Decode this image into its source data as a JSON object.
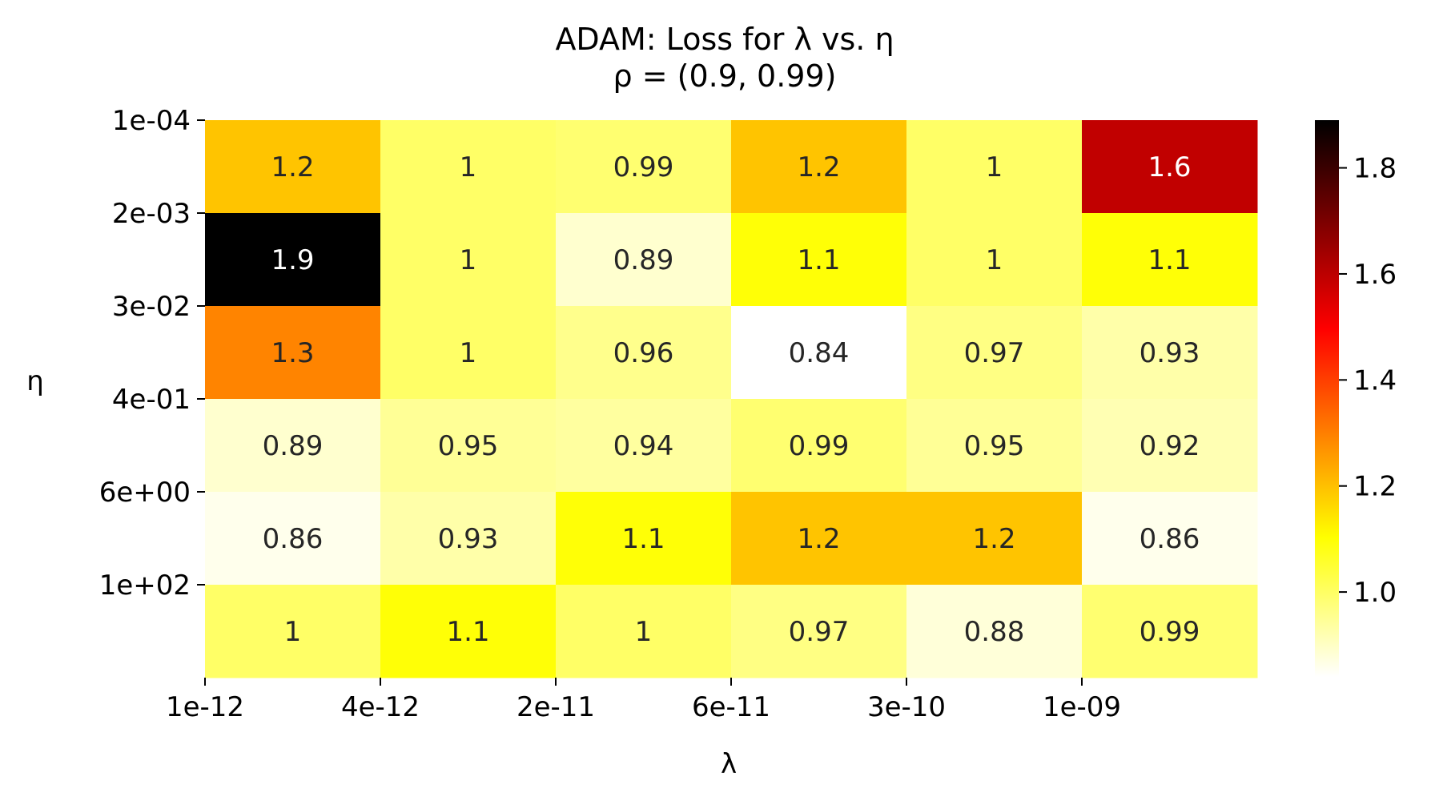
{
  "chart_data": {
    "type": "heatmap",
    "title": "ADAM: Loss for λ vs. η",
    "subtitle": "ρ = (0.9, 0.99)",
    "xlabel": "λ",
    "ylabel": "η",
    "x_tick_labels": [
      "1e-12",
      "4e-12",
      "2e-11",
      "6e-11",
      "3e-10",
      "1e-09"
    ],
    "y_tick_labels": [
      "1e-04",
      "2e-03",
      "3e-02",
      "4e-01",
      "6e+00",
      "1e+02"
    ],
    "values": [
      [
        1.2,
        1.0,
        0.99,
        1.2,
        1.0,
        1.6
      ],
      [
        1.9,
        1.0,
        0.89,
        1.1,
        1.0,
        1.1
      ],
      [
        1.3,
        1.0,
        0.96,
        0.84,
        0.97,
        0.93
      ],
      [
        0.89,
        0.95,
        0.94,
        0.99,
        0.95,
        0.92
      ],
      [
        0.86,
        0.93,
        1.1,
        1.2,
        1.2,
        0.86
      ],
      [
        1.0,
        1.1,
        1.0,
        0.97,
        0.88,
        0.99
      ]
    ],
    "annotations": [
      [
        "1.2",
        "1",
        "0.99",
        "1.2",
        "1",
        "1.6"
      ],
      [
        "1.9",
        "1",
        "0.89",
        "1.1",
        "1",
        "1.1"
      ],
      [
        "1.3",
        "1",
        "0.96",
        "0.84",
        "0.97",
        "0.93"
      ],
      [
        "0.89",
        "0.95",
        "0.94",
        "0.99",
        "0.95",
        "0.92"
      ],
      [
        "0.86",
        "0.93",
        "1.1",
        "1.2",
        "1.2",
        "0.86"
      ],
      [
        "1",
        "1.1",
        "1",
        "0.97",
        "0.88",
        "0.99"
      ]
    ],
    "colormap": "hot_r",
    "color_range": [
      0.84,
      1.89
    ],
    "colorbar_ticks": [
      "1.0",
      "1.2",
      "1.4",
      "1.6",
      "1.8"
    ],
    "colorbar_tick_values": [
      1.0,
      1.2,
      1.4,
      1.6,
      1.8
    ],
    "grid": false
  }
}
